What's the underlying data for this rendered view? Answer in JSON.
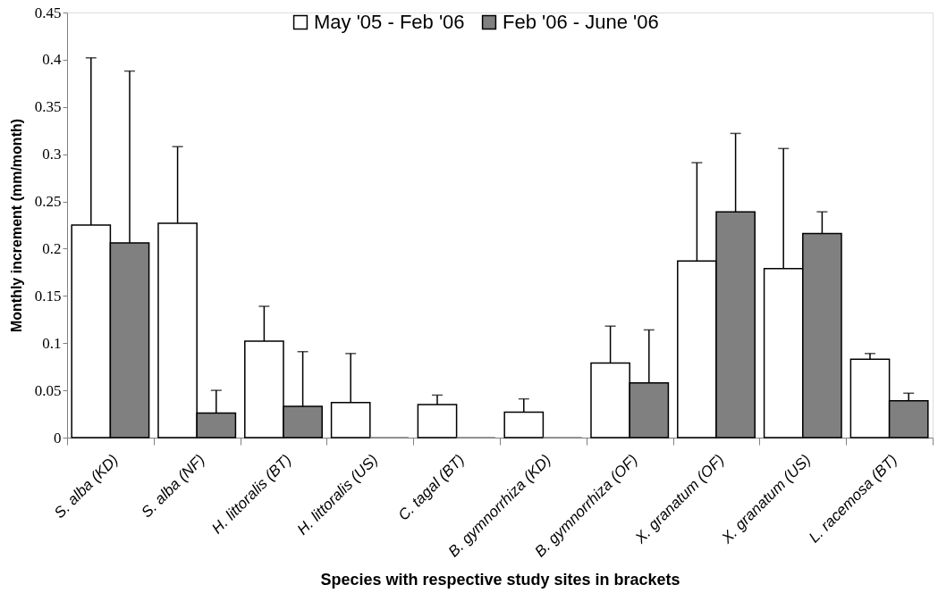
{
  "chart_data": {
    "type": "bar",
    "xlabel": "Species with respective study sites in brackets",
    "ylabel": "Monthly increment (mm/month)",
    "categories": [
      "S. alba (KD)",
      "S. alba (NF)",
      "H. littoralis (BT)",
      "H. littoralis (US)",
      "C. tagal (BT)",
      "B. gymnorrhiza (KD)",
      "B. gymnorrhiza (OF)",
      "X. granatum (OF)",
      "X. granatum (US)",
      "L. racemosa (BT)"
    ],
    "series": [
      {
        "name": "May '05 - Feb '06",
        "color": "#ffffff",
        "values": [
          0.225,
          0.227,
          0.102,
          0.037,
          0.035,
          0.027,
          0.079,
          0.187,
          0.179,
          0.083
        ],
        "errors": [
          [
            0.225,
            0.402
          ],
          [
            0.227,
            0.308
          ],
          [
            0.102,
            0.139
          ],
          [
            0.037,
            0.089
          ],
          [
            0.035,
            0.045
          ],
          [
            0.027,
            0.041
          ],
          [
            0.079,
            0.118
          ],
          [
            0.187,
            0.291
          ],
          [
            0.179,
            0.306
          ],
          [
            0.083,
            0.089
          ]
        ]
      },
      {
        "name": "Feb '06 - June '06",
        "color": "#808080",
        "values": [
          0.206,
          0.026,
          0.033,
          0,
          0,
          0,
          0.058,
          0.239,
          0.216,
          0.039
        ],
        "errors": [
          [
            0.206,
            0.388
          ],
          [
            0.026,
            0.05
          ],
          [
            0.033,
            0.091
          ],
          null,
          null,
          null,
          [
            0.058,
            0.114
          ],
          [
            0.239,
            0.322
          ],
          [
            0.216,
            0.239
          ],
          [
            0.039,
            0.047
          ]
        ]
      }
    ],
    "ylim": [
      0,
      0.45
    ],
    "yticks": [
      0,
      0.05,
      0.1,
      0.15,
      0.2,
      0.25,
      0.3,
      0.35,
      0.4,
      0.45
    ],
    "grid": false,
    "legend": "top"
  }
}
